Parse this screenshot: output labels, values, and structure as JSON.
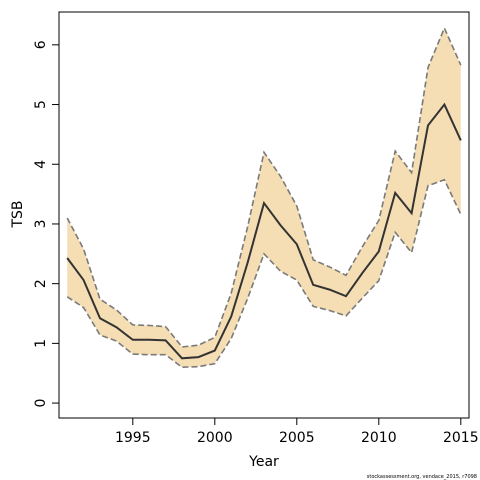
{
  "chart_data": {
    "type": "line",
    "xlabel": "Year",
    "ylabel": "TSB",
    "xlim": [
      1990.5,
      2015.5
    ],
    "ylim": [
      -0.25,
      6.55
    ],
    "xticks": [
      1995,
      2000,
      2005,
      2010,
      2015
    ],
    "yticks": [
      0,
      1,
      2,
      3,
      4,
      5,
      6
    ],
    "grid": false,
    "x": [
      1991,
      1992,
      1993,
      1994,
      1995,
      1996,
      1997,
      1998,
      1999,
      2000,
      2001,
      2002,
      2003,
      2004,
      2005,
      2006,
      2007,
      2008,
      2009,
      2010,
      2011,
      2012,
      2013,
      2014,
      2015
    ],
    "series": [
      {
        "role": "estimate",
        "values": [
          2.43,
          2.06,
          1.42,
          1.27,
          1.06,
          1.06,
          1.05,
          0.75,
          0.77,
          0.88,
          1.45,
          2.35,
          3.35,
          2.98,
          2.66,
          1.98,
          1.9,
          1.79,
          2.18,
          2.54,
          3.52,
          3.18,
          4.65,
          5.0,
          4.4
        ]
      },
      {
        "role": "upper",
        "values": [
          3.1,
          2.58,
          1.74,
          1.56,
          1.31,
          1.3,
          1.28,
          0.94,
          0.97,
          1.1,
          1.84,
          2.95,
          4.2,
          3.8,
          3.3,
          2.4,
          2.28,
          2.14,
          2.62,
          3.06,
          4.22,
          3.86,
          5.62,
          6.28,
          5.66
        ]
      },
      {
        "role": "lower",
        "values": [
          1.78,
          1.6,
          1.14,
          1.04,
          0.82,
          0.81,
          0.81,
          0.6,
          0.61,
          0.66,
          1.08,
          1.75,
          2.5,
          2.21,
          2.06,
          1.62,
          1.55,
          1.46,
          1.76,
          2.05,
          2.86,
          2.52,
          3.64,
          3.74,
          3.16
        ]
      }
    ],
    "colors": {
      "band": "#f5deb3",
      "bounds": "#7a7a7a",
      "line": "#333333",
      "axis": "#000000"
    }
  },
  "footnote": "stockassessment.org, vendace_2015, r7098"
}
